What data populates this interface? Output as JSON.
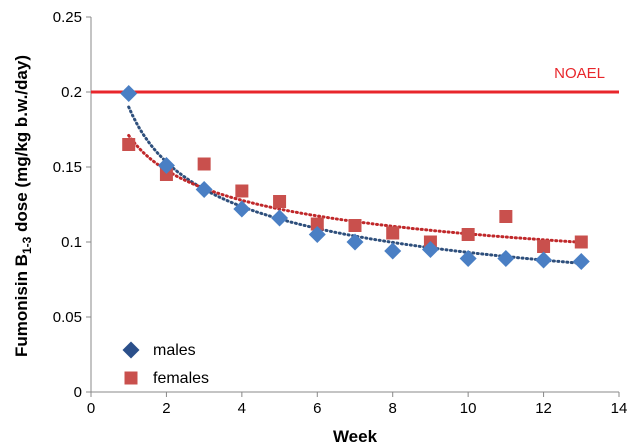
{
  "chart_data": {
    "type": "scatter",
    "title": "",
    "xlabel": "Week",
    "ylabel_main": "Fumonisin B",
    "ylabel_sub": "1-3",
    "ylabel_rest": " dose (mg/kg b.w./day)",
    "xlim": [
      0,
      14
    ],
    "ylim": [
      0,
      0.25
    ],
    "x_ticks": [
      0,
      2,
      4,
      6,
      8,
      10,
      12,
      14
    ],
    "x_tick_labels": [
      "0",
      "2",
      "4",
      "6",
      "8",
      "10",
      "12",
      "14"
    ],
    "y_ticks": [
      0,
      0.05,
      0.1,
      0.15,
      0.2,
      0.25
    ],
    "y_tick_labels": [
      "0",
      "0.05",
      "0.1",
      "0.15",
      "0.2",
      "0.25"
    ],
    "grid": false,
    "legend_position": "bottom-left",
    "reference_line": {
      "label": "NOAEL",
      "y": 0.2,
      "color": "#e8262b"
    },
    "series": [
      {
        "name": "males",
        "marker": "diamond",
        "color": "#4a7fc4",
        "legend_color": "#2b4f8a",
        "trend_color": "#2e4f7c",
        "x": [
          1,
          2,
          3,
          4,
          5,
          6,
          7,
          8,
          9,
          10,
          11,
          12,
          13
        ],
        "y": [
          0.199,
          0.151,
          0.135,
          0.122,
          0.116,
          0.105,
          0.1,
          0.094,
          0.095,
          0.089,
          0.089,
          0.088,
          0.087
        ],
        "trend": {
          "type": "power",
          "a": 0.19,
          "b": -0.31
        }
      },
      {
        "name": "females",
        "marker": "square",
        "color": "#c9504d",
        "legend_color": "#c9504d",
        "trend_color": "#c0282a",
        "x": [
          1,
          2,
          3,
          4,
          5,
          6,
          7,
          8,
          9,
          10,
          11,
          12,
          13
        ],
        "y": [
          0.165,
          0.145,
          0.152,
          0.134,
          0.127,
          0.112,
          0.111,
          0.106,
          0.1,
          0.105,
          0.117,
          0.097,
          0.1
        ],
        "trend": {
          "type": "power",
          "a": 0.171,
          "b": -0.21
        }
      }
    ]
  }
}
